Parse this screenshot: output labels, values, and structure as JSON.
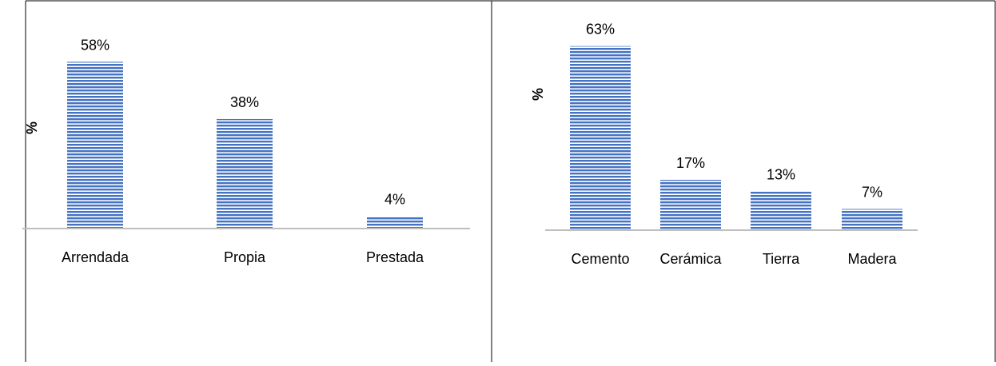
{
  "chart_data": [
    {
      "type": "bar",
      "title": "",
      "xlabel": "",
      "ylabel": "%",
      "categories": [
        "Arrendada",
        "Propia",
        "Prestada"
      ],
      "values": [
        58,
        38,
        4
      ],
      "value_labels": [
        "58%",
        "38%",
        "4%"
      ],
      "ylim": [
        0,
        100
      ],
      "grid": false,
      "legend": "none",
      "bar_color": "#4472c4"
    },
    {
      "type": "bar",
      "title": "",
      "xlabel": "",
      "ylabel": "%",
      "categories": [
        "Cemento",
        "Cerámica",
        "Tierra",
        "Madera"
      ],
      "values": [
        63,
        17,
        13,
        7
      ],
      "value_labels": [
        "63%",
        "17%",
        "13%",
        "7%"
      ],
      "ylim": [
        0,
        100
      ],
      "grid": false,
      "legend": "none",
      "bar_color": "#4472c4"
    }
  ]
}
